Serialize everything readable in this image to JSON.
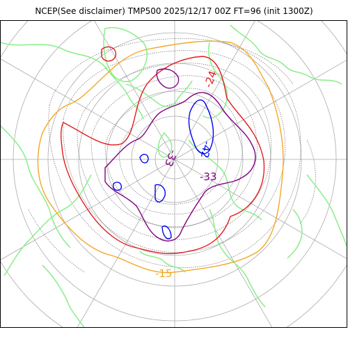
{
  "title": "NCEP(See disclaimer) TMP500 2025/12/17 00Z FT=96 (init 1300Z)",
  "contour_levels": [
    {
      "label": "-15",
      "color": "#f5a623"
    },
    {
      "label": "-24",
      "color": "#e31a1c"
    },
    {
      "label": "-33",
      "color": "#800080"
    },
    {
      "label": "-42",
      "color": "#0000ee"
    }
  ],
  "colors": {
    "coastline": "#90ee90",
    "graticule": "#aaaaaa",
    "minor_contour": "#555555",
    "frame": "#000000"
  },
  "labels": {
    "label_15": "-15",
    "label_24": "-24",
    "label_33a": "-33",
    "label_33b": "-33",
    "label_42": "-42"
  }
}
